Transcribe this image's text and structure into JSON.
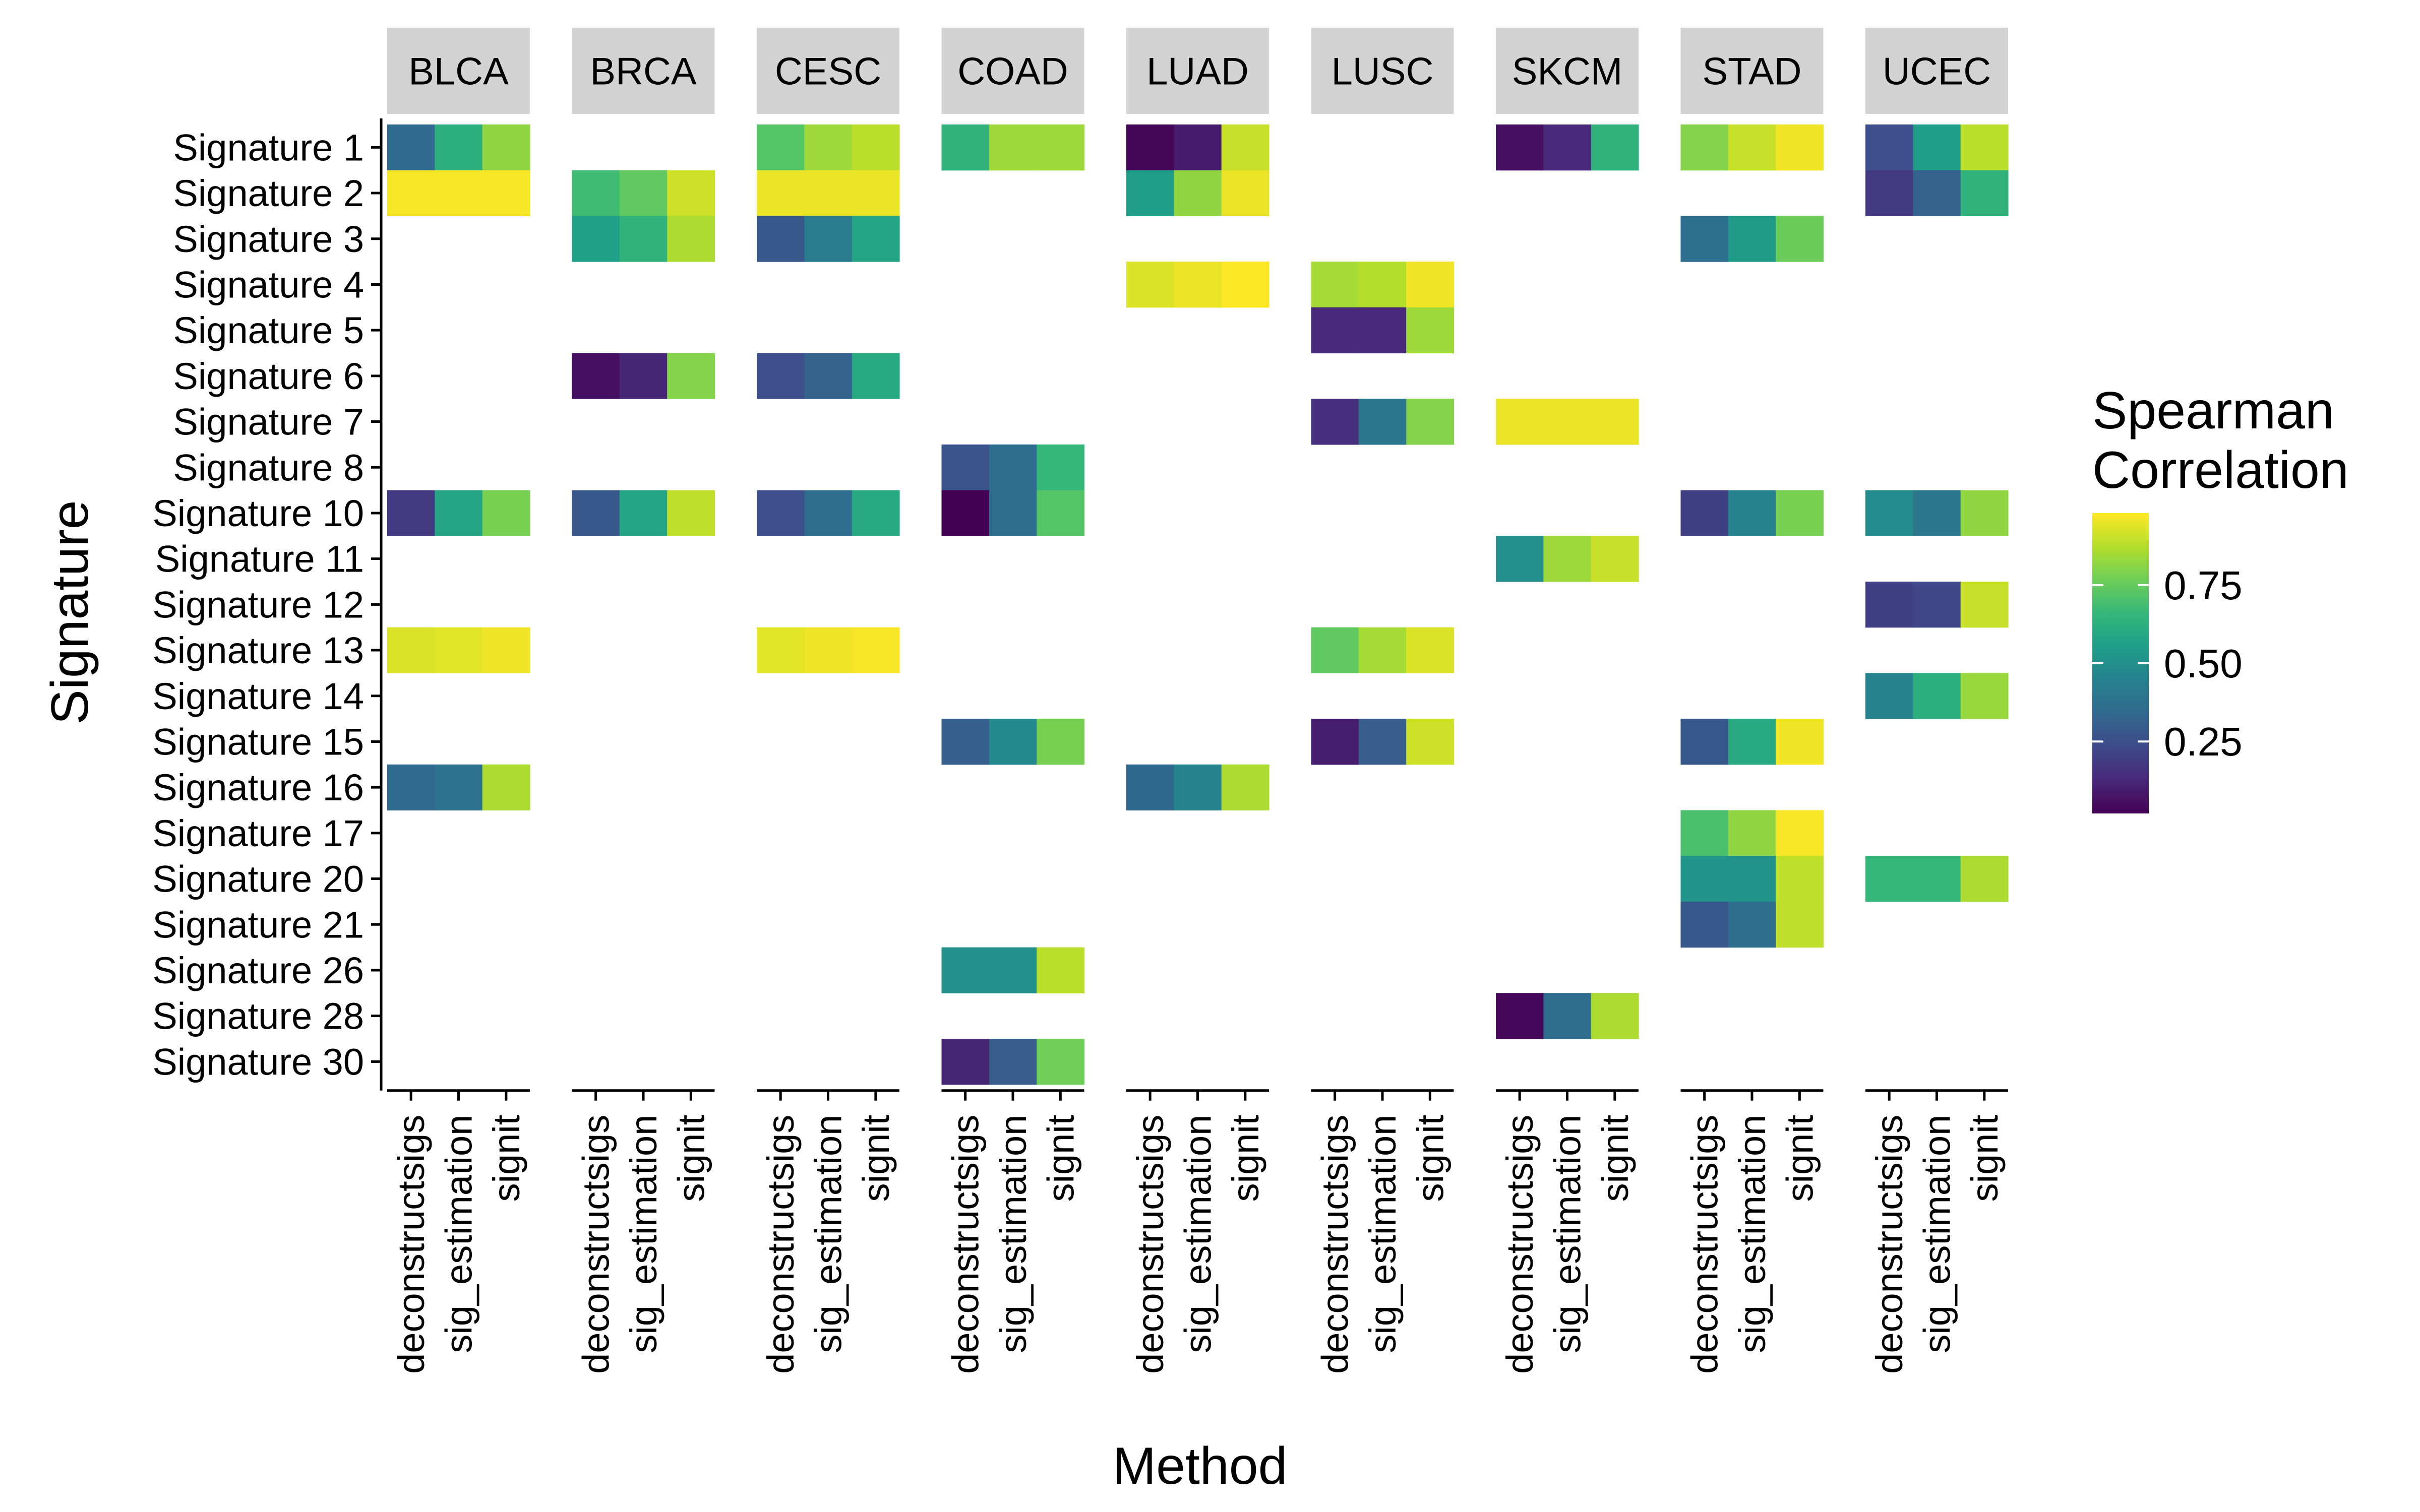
{
  "chart_data": {
    "type": "heatmap",
    "xlabel": "Method",
    "ylabel": "Signature",
    "legend": {
      "title": [
        "Spearman",
        "Correlation"
      ],
      "ticks": [
        0.25,
        0.5,
        0.75
      ],
      "tick_labels": [
        "0.25",
        "0.50",
        "0.75"
      ],
      "range": [
        0.02,
        0.98
      ],
      "placement": "right"
    },
    "colormap": [
      "#440154",
      "#482878",
      "#3e4a89",
      "#31688e",
      "#26828e",
      "#1f9e89",
      "#35b779",
      "#6ece58",
      "#b5de2b",
      "#fde725"
    ],
    "panels": [
      "BLCA",
      "BRCA",
      "CESC",
      "COAD",
      "LUAD",
      "LUSC",
      "SKCM",
      "STAD",
      "UCEC"
    ],
    "methods": [
      "deconstructsigs",
      "sig_estimation",
      "signit"
    ],
    "signatures": [
      "Signature 1",
      "Signature 2",
      "Signature 3",
      "Signature 4",
      "Signature 5",
      "Signature 6",
      "Signature 7",
      "Signature 8",
      "Signature 10",
      "Signature 11",
      "Signature 12",
      "Signature 13",
      "Signature 14",
      "Signature 15",
      "Signature 16",
      "Signature 17",
      "Signature 20",
      "Signature 21",
      "Signature 26",
      "Signature 28",
      "Signature 30"
    ],
    "cells": {
      "BLCA": [
        [
          "Signature 1",
          0.35,
          0.62,
          0.82
        ],
        [
          "Signature 2",
          0.97,
          0.97,
          0.97
        ],
        [
          "Signature 10",
          0.18,
          0.58,
          0.78
        ],
        [
          "Signature 13",
          0.93,
          0.94,
          0.96
        ],
        [
          "Signature 16",
          0.35,
          0.38,
          0.86
        ]
      ],
      "BRCA": [
        [
          "Signature 2",
          0.68,
          0.74,
          0.91
        ],
        [
          "Signature 3",
          0.56,
          0.64,
          0.86
        ],
        [
          "Signature 6",
          0.06,
          0.12,
          0.8
        ],
        [
          "Signature 10",
          0.28,
          0.58,
          0.89
        ]
      ],
      "CESC": [
        [
          "Signature 1",
          0.72,
          0.84,
          0.88
        ],
        [
          "Signature 2",
          0.95,
          0.95,
          0.95
        ],
        [
          "Signature 3",
          0.28,
          0.42,
          0.58
        ],
        [
          "Signature 6",
          0.25,
          0.32,
          0.6
        ],
        [
          "Signature 10",
          0.25,
          0.36,
          0.6
        ],
        [
          "Signature 13",
          0.94,
          0.96,
          0.97
        ]
      ],
      "COAD": [
        [
          "Signature 1",
          0.64,
          0.84,
          0.84
        ],
        [
          "Signature 8",
          0.27,
          0.36,
          0.66
        ],
        [
          "Signature 10",
          0.02,
          0.36,
          0.72
        ],
        [
          "Signature 15",
          0.31,
          0.47,
          0.78
        ],
        [
          "Signature 26",
          0.5,
          0.5,
          0.88
        ],
        [
          "Signature 30",
          0.12,
          0.3,
          0.77
        ]
      ],
      "LUAD": [
        [
          "Signature 1",
          0.03,
          0.09,
          0.9
        ],
        [
          "Signature 2",
          0.55,
          0.82,
          0.95
        ],
        [
          "Signature 4",
          0.93,
          0.95,
          0.98
        ],
        [
          "Signature 16",
          0.34,
          0.45,
          0.86
        ]
      ],
      "LUSC": [
        [
          "Signature 4",
          0.85,
          0.87,
          0.96
        ],
        [
          "Signature 5",
          0.13,
          0.13,
          0.84
        ],
        [
          "Signature 7",
          0.15,
          0.4,
          0.8
        ],
        [
          "Signature 13",
          0.74,
          0.85,
          0.93
        ],
        [
          "Signature 15",
          0.1,
          0.3,
          0.91
        ]
      ],
      "SKCM": [
        [
          "Signature 1",
          0.06,
          0.13,
          0.64
        ],
        [
          "Signature 7",
          0.95,
          0.95,
          0.95
        ],
        [
          "Signature 11",
          0.5,
          0.84,
          0.9
        ],
        [
          "Signature 28",
          0.04,
          0.36,
          0.86
        ]
      ],
      "STAD": [
        [
          "Signature 1",
          0.8,
          0.9,
          0.96
        ],
        [
          "Signature 3",
          0.37,
          0.54,
          0.76
        ],
        [
          "Signature 10",
          0.2,
          0.45,
          0.78
        ],
        [
          "Signature 15",
          0.28,
          0.6,
          0.96
        ],
        [
          "Signature 17",
          0.7,
          0.82,
          0.97
        ],
        [
          "Signature 20",
          0.52,
          0.52,
          0.89
        ],
        [
          "Signature 21",
          0.28,
          0.36,
          0.89
        ]
      ],
      "UCEC": [
        [
          "Signature 1",
          0.25,
          0.55,
          0.88
        ],
        [
          "Signature 2",
          0.18,
          0.32,
          0.64
        ],
        [
          "Signature 10",
          0.48,
          0.4,
          0.82
        ],
        [
          "Signature 12",
          0.2,
          0.22,
          0.9
        ],
        [
          "Signature 14",
          0.45,
          0.62,
          0.83
        ],
        [
          "Signature 20",
          0.66,
          0.66,
          0.86
        ]
      ]
    }
  }
}
